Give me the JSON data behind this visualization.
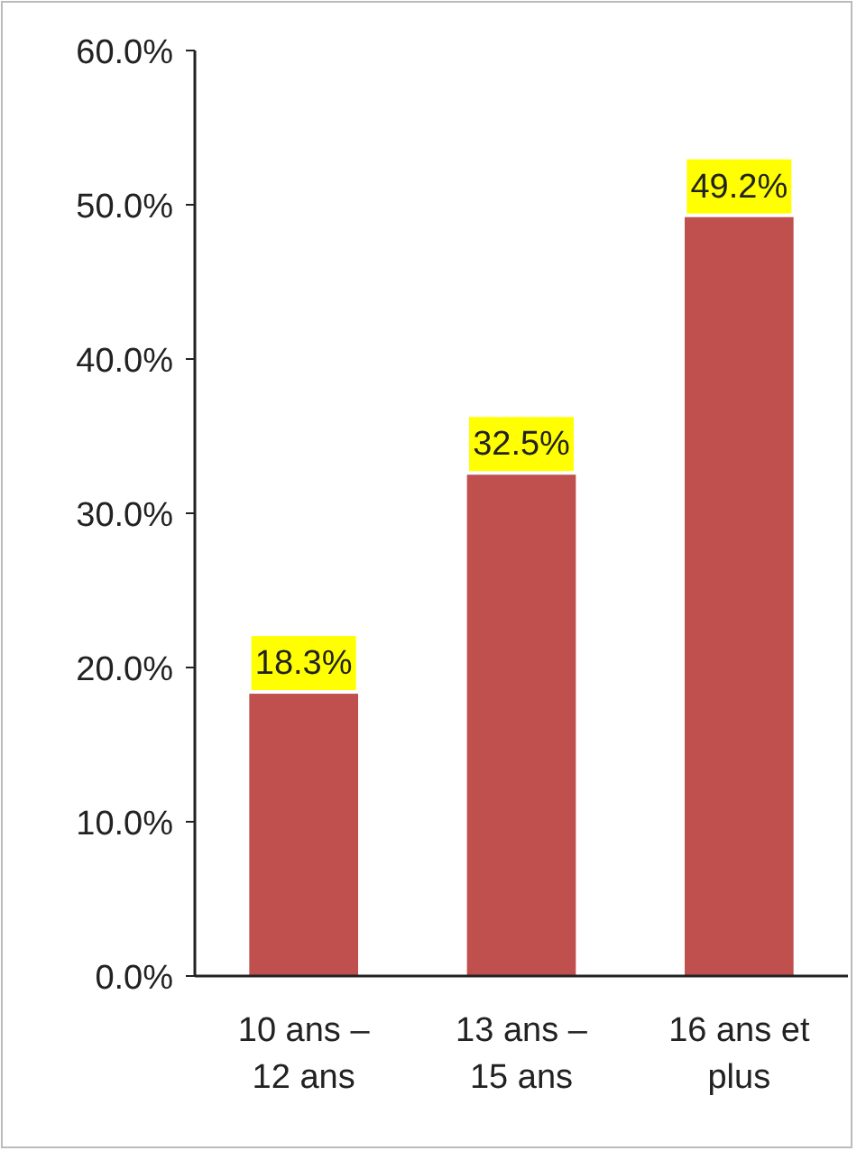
{
  "chart_data": {
    "type": "bar",
    "categories": [
      "10 ans – 12 ans",
      "13 ans – 15 ans",
      "16 ans et plus"
    ],
    "values": [
      18.3,
      32.5,
      49.2
    ],
    "color": "#c0504d",
    "value_labels": [
      "18.3%",
      "32.5%",
      "49.2%"
    ],
    "ylim": [
      0,
      60
    ],
    "yticks": [
      {
        "value": 0,
        "label": "0.0%"
      },
      {
        "value": 10,
        "label": "10.0%"
      },
      {
        "value": 20,
        "label": "20.0%"
      },
      {
        "value": 30,
        "label": "30.0%"
      },
      {
        "value": 40,
        "label": "40.0%"
      },
      {
        "value": 50,
        "label": "50.0%"
      },
      {
        "value": 60,
        "label": "60.0%"
      }
    ]
  }
}
